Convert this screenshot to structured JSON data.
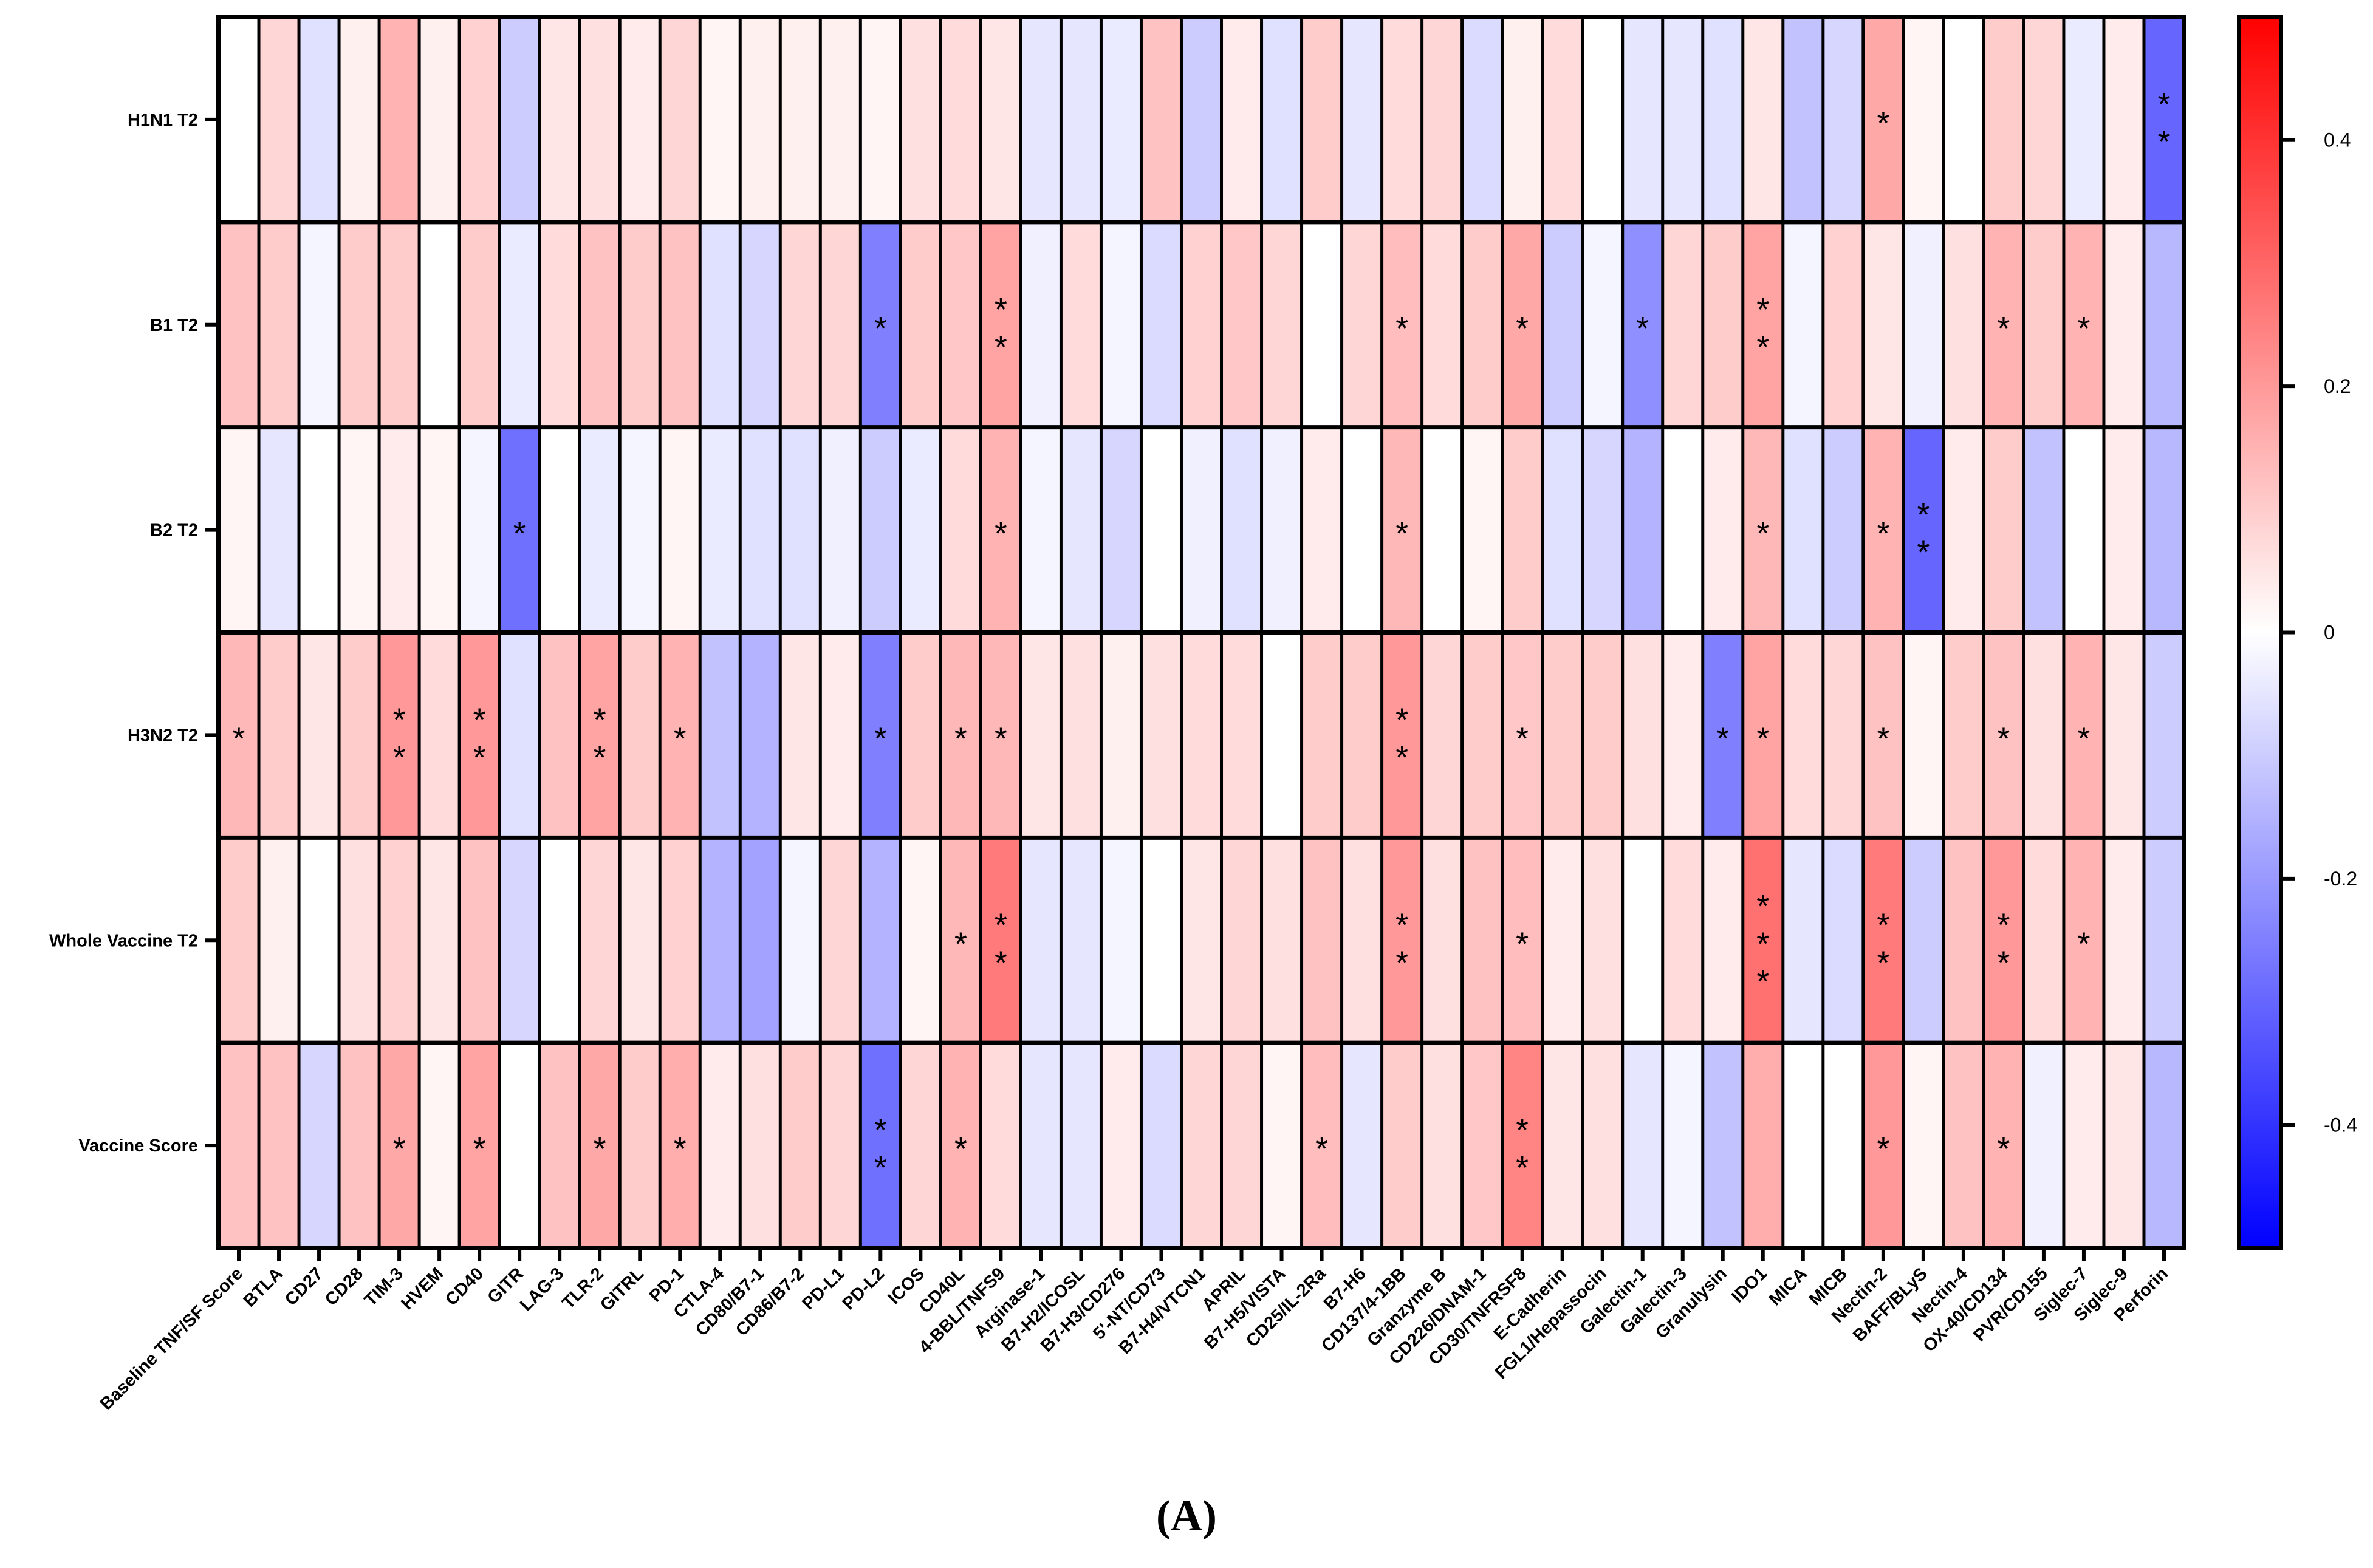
{
  "chart_data": {
    "type": "heatmap",
    "title": "",
    "panel_label": "(A)",
    "rows": [
      "H1N1 T2",
      "B1 T2",
      "B2 T2",
      "H3N2 T2",
      "Whole Vaccine T2",
      "Vaccine Score"
    ],
    "columns": [
      "Baseline TNF/SF Score",
      "BTLA",
      "CD27",
      "CD28",
      "TIM-3",
      "HVEM",
      "CD40",
      "GITR",
      "LAG-3",
      "TLR-2",
      "GITRL",
      "PD-1",
      "CTLA-4",
      "CD80/B7-1",
      "CD86/B7-2",
      "PD-L1",
      "PD-L2",
      "ICOS",
      "CD40L",
      "4-BBL/TNFS9",
      "Arginase-1",
      "B7-H2/ICOSL",
      "B7-H3/CD276",
      "5'-NT/CD73",
      "B7-H4/VTCN1",
      "APRIL",
      "B7-H5/VISTA",
      "CD25/IL-2Ra",
      "B7-H6",
      "CD137/4-1BB",
      "Granzyme B",
      "CD226/DNAM-1",
      "CD30/TNFRSF8",
      "E-Cadherin",
      "FGL1/Hepassocin",
      "Galectin-1",
      "Galectin-3",
      "Granulysin",
      "IDO1",
      "MICA",
      "MICB",
      "Nectin-2",
      "BAFF/BLyS",
      "Nectin-4",
      "OX-40/CD134",
      "PVR/CD155",
      "Siglec-7",
      "Siglec-9",
      "Perforin"
    ],
    "values": [
      [
        0.0,
        0.08,
        -0.06,
        0.03,
        0.15,
        0.03,
        0.09,
        -0.1,
        0.05,
        0.06,
        0.04,
        0.08,
        0.02,
        0.03,
        0.03,
        0.03,
        0.02,
        0.06,
        0.07,
        0.05,
        -0.05,
        -0.05,
        -0.04,
        0.12,
        -0.1,
        0.04,
        -0.06,
        0.1,
        -0.05,
        0.07,
        0.08,
        -0.07,
        0.03,
        0.07,
        0.0,
        -0.05,
        -0.05,
        -0.06,
        0.05,
        -0.12,
        -0.08,
        0.17,
        0.02,
        0.0,
        0.1,
        0.08,
        -0.04,
        0.04,
        -0.3
      ],
      [
        0.12,
        0.1,
        -0.02,
        0.1,
        0.1,
        0.0,
        0.1,
        -0.04,
        0.07,
        0.12,
        0.1,
        0.12,
        -0.06,
        -0.08,
        0.08,
        0.08,
        -0.25,
        0.1,
        0.11,
        0.18,
        -0.03,
        0.07,
        -0.02,
        -0.07,
        0.09,
        0.11,
        0.08,
        0.0,
        0.08,
        0.13,
        0.07,
        0.1,
        0.17,
        -0.1,
        -0.02,
        -0.22,
        0.08,
        0.1,
        0.18,
        -0.02,
        0.09,
        0.05,
        -0.03,
        0.06,
        0.15,
        0.1,
        0.15,
        0.04,
        -0.14
      ],
      [
        0.02,
        -0.05,
        0.0,
        0.02,
        0.04,
        0.02,
        -0.02,
        -0.28,
        0.0,
        -0.04,
        -0.02,
        0.02,
        -0.04,
        -0.06,
        -0.06,
        -0.03,
        -0.1,
        -0.04,
        0.07,
        0.15,
        -0.02,
        -0.05,
        -0.08,
        0.0,
        -0.03,
        -0.06,
        -0.03,
        0.04,
        0.0,
        0.14,
        0.0,
        0.02,
        0.1,
        -0.06,
        -0.08,
        -0.15,
        0.0,
        0.04,
        0.14,
        -0.06,
        -0.1,
        0.15,
        -0.3,
        0.04,
        0.1,
        -0.12,
        0.0,
        0.04,
        -0.14
      ],
      [
        0.14,
        0.1,
        0.05,
        0.1,
        0.2,
        0.07,
        0.2,
        -0.06,
        0.12,
        0.18,
        0.1,
        0.15,
        -0.12,
        -0.15,
        0.05,
        0.04,
        -0.25,
        0.1,
        0.14,
        0.14,
        0.05,
        0.06,
        0.03,
        0.06,
        0.07,
        0.07,
        0.0,
        0.1,
        0.1,
        0.2,
        0.08,
        0.1,
        0.11,
        0.1,
        0.1,
        0.06,
        0.04,
        -0.25,
        0.18,
        0.07,
        0.08,
        0.12,
        0.02,
        0.1,
        0.12,
        0.06,
        0.15,
        0.05,
        -0.1
      ],
      [
        0.1,
        0.03,
        0.0,
        0.06,
        0.09,
        0.05,
        0.12,
        -0.08,
        0.0,
        0.08,
        0.05,
        0.09,
        -0.15,
        -0.18,
        -0.02,
        0.08,
        -0.15,
        0.02,
        0.14,
        0.26,
        -0.05,
        -0.05,
        -0.02,
        0.0,
        0.05,
        0.08,
        0.06,
        0.12,
        0.06,
        0.2,
        0.06,
        0.12,
        0.13,
        0.04,
        0.06,
        0.0,
        0.07,
        0.04,
        0.28,
        -0.05,
        -0.07,
        0.26,
        -0.1,
        0.12,
        0.2,
        0.07,
        0.15,
        0.04,
        -0.1
      ],
      [
        0.12,
        0.12,
        -0.08,
        0.12,
        0.17,
        0.02,
        0.18,
        0.0,
        0.12,
        0.17,
        0.1,
        0.16,
        0.04,
        0.06,
        0.1,
        0.08,
        -0.28,
        0.08,
        0.15,
        0.07,
        -0.05,
        -0.05,
        0.04,
        -0.07,
        0.08,
        0.08,
        0.02,
        0.13,
        -0.05,
        0.1,
        0.06,
        0.11,
        0.24,
        0.05,
        0.06,
        -0.05,
        -0.02,
        -0.12,
        0.16,
        0.0,
        0.0,
        0.2,
        0.02,
        0.12,
        0.15,
        -0.03,
        0.04,
        0.05,
        -0.14
      ]
    ],
    "significance": [
      [
        "",
        "",
        "",
        "",
        "",
        "",
        "",
        "",
        "",
        "",
        "",
        "",
        "",
        "",
        "",
        "",
        "",
        "",
        "",
        "",
        "",
        "",
        "",
        "",
        "",
        "",
        "",
        "",
        "",
        "",
        "",
        "",
        "",
        "",
        "",
        "",
        "",
        "",
        "",
        "",
        "",
        "*",
        "",
        "",
        "",
        "",
        "",
        "",
        "**"
      ],
      [
        "",
        "",
        "",
        "",
        "",
        "",
        "",
        "",
        "",
        "",
        "",
        "",
        "",
        "",
        "",
        "",
        "*",
        "",
        "",
        "**",
        "",
        "",
        "",
        "",
        "",
        "",
        "",
        "",
        "",
        "*",
        "",
        "",
        "*",
        "",
        "",
        "*",
        "",
        "",
        "**",
        "",
        "",
        "",
        "",
        "",
        "*",
        "",
        "*",
        "",
        ""
      ],
      [
        "",
        "",
        "",
        "",
        "",
        "",
        "",
        "*",
        "",
        "",
        "",
        "",
        "",
        "",
        "",
        "",
        "",
        "",
        "",
        "*",
        "",
        "",
        "",
        "",
        "",
        "",
        "",
        "",
        "",
        "*",
        "",
        "",
        "",
        "",
        "",
        "",
        "",
        "",
        "*",
        "",
        "",
        "*",
        "**",
        "",
        "",
        "",
        "",
        "",
        ""
      ],
      [
        "*",
        "",
        "",
        "",
        "**",
        "",
        "**",
        "",
        "",
        "**",
        "",
        "*",
        "",
        "",
        "",
        "",
        "*",
        "",
        "*",
        "*",
        "",
        "",
        "",
        "",
        "",
        "",
        "",
        "",
        "",
        "**",
        "",
        "",
        "*",
        "",
        "",
        "",
        "",
        "*",
        "*",
        "",
        "",
        "*",
        "",
        "",
        "*",
        "",
        "*",
        "",
        ""
      ],
      [
        "",
        "",
        "",
        "",
        "",
        "",
        "",
        "",
        "",
        "",
        "",
        "",
        "",
        "",
        "",
        "",
        "",
        "",
        "*",
        "**",
        "",
        "",
        "",
        "",
        "",
        "",
        "",
        "",
        "",
        "**",
        "",
        "",
        "*",
        "",
        "",
        "",
        "",
        "",
        "***",
        "",
        "",
        "**",
        "",
        "",
        "**",
        "",
        "*",
        "",
        ""
      ],
      [
        "",
        "",
        "",
        "",
        "*",
        "",
        "*",
        "",
        "",
        "*",
        "",
        "*",
        "",
        "",
        "",
        "",
        "**",
        "",
        "*",
        "",
        "",
        "",
        "",
        "",
        "",
        "",
        "",
        "*",
        "",
        "",
        "",
        "",
        "**",
        "",
        "",
        "",
        "",
        "",
        "",
        "",
        "",
        "*",
        "",
        "",
        "*",
        "",
        "",
        "",
        ""
      ]
    ],
    "colorbar": {
      "min": -0.5,
      "max": 0.5,
      "ticks": [
        0.4,
        0.2,
        0,
        -0.2,
        -0.4
      ],
      "tick_labels": [
        "0.4",
        "0.2",
        "0",
        "-0.2",
        "-0.4"
      ],
      "colors": {
        "negative": "#0000ff",
        "zero": "#ffffff",
        "positive": "#ff0000"
      }
    },
    "xlabel": "",
    "ylabel": ""
  }
}
